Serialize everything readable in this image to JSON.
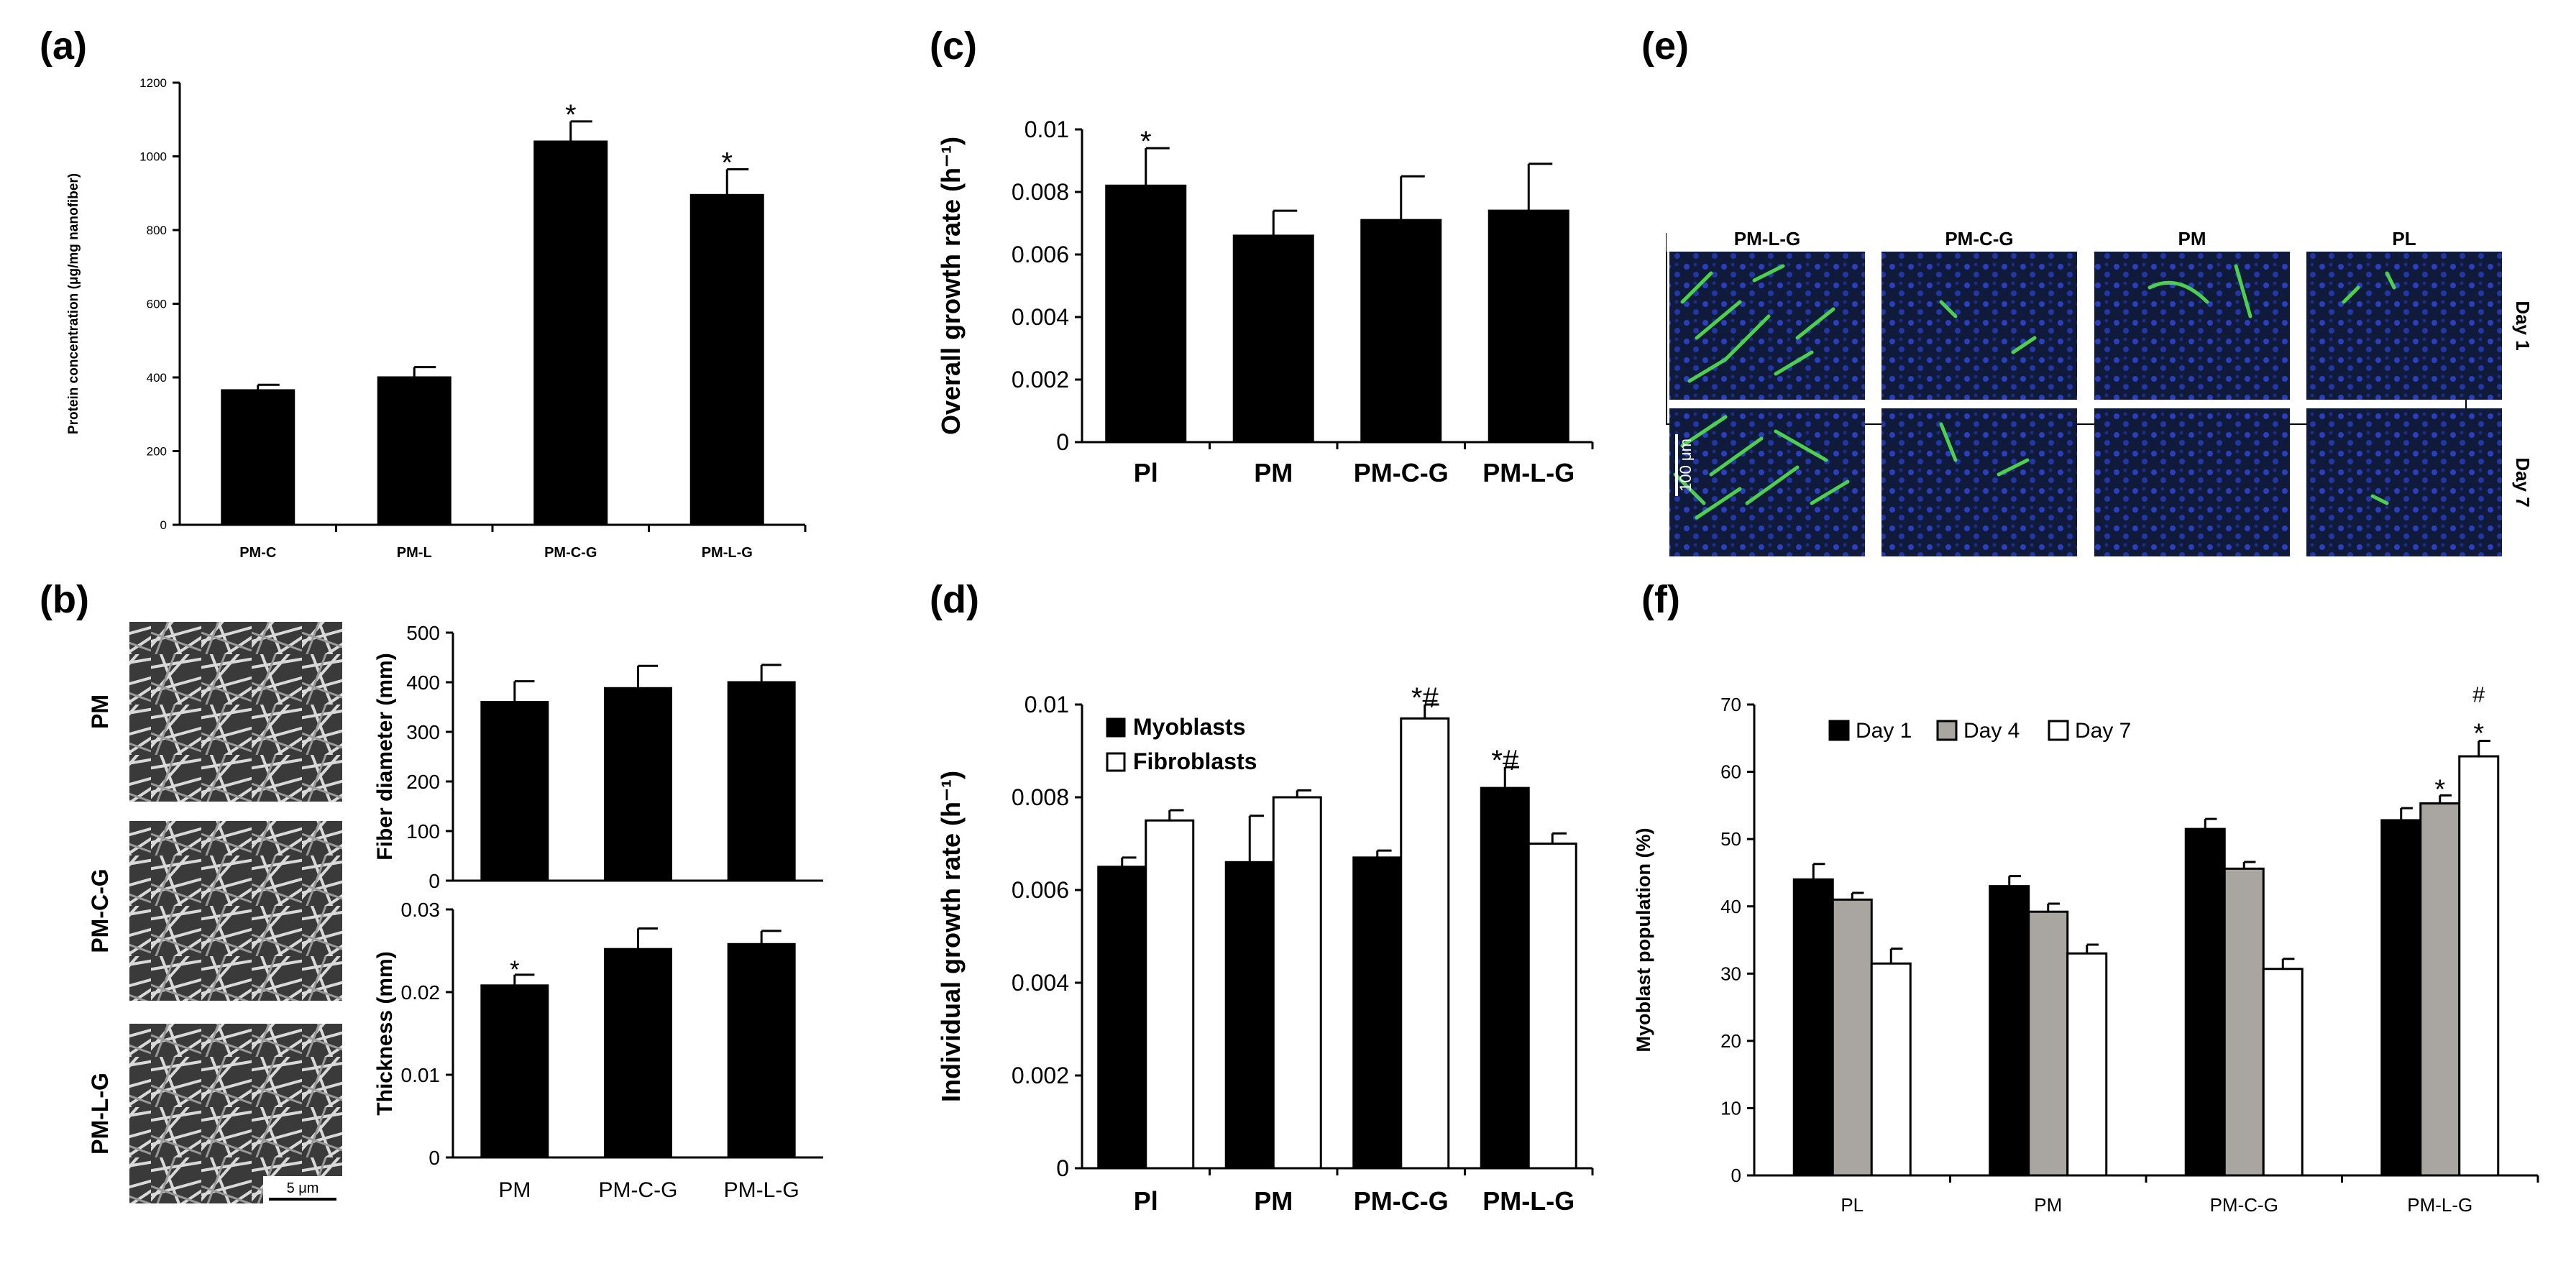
{
  "panels": {
    "a": "(a)",
    "b": "(b)",
    "c": "(c)",
    "d": "(d)",
    "e": "(e)",
    "f": "(f)"
  },
  "sem": {
    "row_labels": [
      "PM",
      "PM-C-G",
      "PM-L-G"
    ],
    "scale_bar": "5 μm"
  },
  "micro": {
    "col_labels": [
      "PM-L-G",
      "PM-C-G",
      "PM",
      "PL"
    ],
    "row_labels": [
      "Day 1",
      "Day 7"
    ],
    "scale_bar": "100 μm"
  },
  "colors": {
    "black": "#000000",
    "grey": "#a9a5a1",
    "white": "#ffffff"
  },
  "chart_data": [
    {
      "id": "a",
      "type": "bar",
      "title": "",
      "categories": [
        "PM-C",
        "PM-L",
        "PM-C-G",
        "PM-L-G"
      ],
      "values": [
        365,
        400,
        1040,
        895
      ],
      "errors": [
        15,
        28,
        55,
        70
      ],
      "significance": [
        "",
        "",
        "*",
        "*"
      ],
      "ylabel": "Protein concentration (μg/mg nanofiber)",
      "xlabel": "",
      "ylim": [
        0,
        1200
      ],
      "yticks": [
        "0",
        "200",
        "400",
        "600",
        "800",
        "1000",
        "1200"
      ]
    },
    {
      "id": "b1",
      "type": "bar",
      "categories": [
        "PM",
        "PM-C-G",
        "PM-L-G"
      ],
      "values": [
        360,
        388,
        400
      ],
      "errors": [
        42,
        45,
        35
      ],
      "significance": [
        "",
        "",
        ""
      ],
      "ylabel": "Fiber diameter (mm)",
      "xlabel": "",
      "ylim": [
        0,
        500
      ],
      "yticks": [
        "0",
        "100",
        "200",
        "300",
        "400",
        "500"
      ]
    },
    {
      "id": "b2",
      "type": "bar",
      "categories": [
        "PM",
        "PM-C-G",
        "PM-L-G"
      ],
      "values": [
        0.0208,
        0.0252,
        0.0258
      ],
      "errors": [
        0.0013,
        0.0025,
        0.0016
      ],
      "significance": [
        "*",
        "",
        ""
      ],
      "ylabel": "Thickness (mm)",
      "xlabel": "",
      "ylim": [
        0,
        0.03
      ],
      "yticks": [
        "0",
        "0.01",
        "0.02",
        "0.03"
      ]
    },
    {
      "id": "c",
      "type": "bar",
      "categories": [
        "Pl",
        "PM",
        "PM-C-G",
        "PM-L-G"
      ],
      "values": [
        0.0082,
        0.0066,
        0.0071,
        0.0074
      ],
      "errors": [
        0.0012,
        0.0008,
        0.0014,
        0.0015
      ],
      "significance": [
        "*",
        "",
        "",
        ""
      ],
      "ylabel": "Overall growth rate (h⁻¹)",
      "xlabel": "",
      "ylim": [
        0,
        0.01
      ],
      "yticks": [
        "0",
        "0.002",
        "0.004",
        "0.006",
        "0.008",
        "0.01"
      ]
    },
    {
      "id": "d",
      "type": "bar",
      "categories": [
        "Pl",
        "PM",
        "PM-C-G",
        "PM-L-G"
      ],
      "series": [
        {
          "name": "Myoblasts",
          "color": "#000000",
          "values": [
            0.0065,
            0.0066,
            0.0067,
            0.0082
          ],
          "errors": [
            0.0002,
            0.001,
            0.00015,
            0.00045
          ],
          "significance": [
            "",
            "",
            "",
            "*#"
          ]
        },
        {
          "name": "Fibroblasts",
          "color": "#ffffff",
          "values": [
            0.0075,
            0.008,
            0.0097,
            0.007
          ],
          "errors": [
            0.00022,
            0.00015,
            0.0003,
            0.00022
          ],
          "significance": [
            "",
            "",
            "*#",
            ""
          ]
        }
      ],
      "ylabel": "Individual growth rate (h⁻¹)",
      "xlabel": "",
      "ylim": [
        0,
        0.01
      ],
      "yticks": [
        "0",
        "0.002",
        "0.004",
        "0.006",
        "0.008",
        "0.01"
      ],
      "legend": "top-left"
    },
    {
      "id": "f",
      "type": "bar",
      "categories": [
        "PL",
        "PM",
        "PM-C-G",
        "PM-L-G"
      ],
      "series": [
        {
          "name": "Day 1",
          "color": "#000000",
          "values": [
            44,
            43,
            51.5,
            52.8
          ],
          "errors": [
            2.3,
            1.5,
            1.5,
            1.8
          ],
          "significance": [
            "",
            "",
            "",
            ""
          ]
        },
        {
          "name": "Day 4",
          "color": "#a9a5a1",
          "values": [
            41,
            39.2,
            45.6,
            55.3
          ],
          "errors": [
            1,
            1.2,
            1,
            1.2
          ],
          "significance": [
            "",
            "",
            "",
            "*"
          ]
        },
        {
          "name": "Day 7",
          "color": "#ffffff",
          "values": [
            31.5,
            33,
            30.7,
            62.3
          ],
          "errors": [
            2.2,
            1.3,
            1.5,
            2.3
          ],
          "significance": [
            "",
            "",
            "",
            "*#"
          ]
        }
      ],
      "ylabel": "Myoblast population (%)",
      "xlabel": "",
      "ylim": [
        0,
        70
      ],
      "yticks": [
        "0",
        "10",
        "20",
        "30",
        "40",
        "50",
        "60",
        "70"
      ],
      "legend": "top"
    }
  ]
}
